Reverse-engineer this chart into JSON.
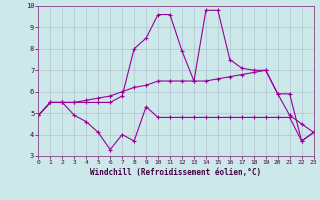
{
  "xlabel": "Windchill (Refroidissement éolien,°C)",
  "xlim": [
    0,
    23
  ],
  "ylim": [
    3,
    10
  ],
  "xticks": [
    0,
    1,
    2,
    3,
    4,
    5,
    6,
    7,
    8,
    9,
    10,
    11,
    12,
    13,
    14,
    15,
    16,
    17,
    18,
    19,
    20,
    21,
    22,
    23
  ],
  "yticks": [
    3,
    4,
    5,
    6,
    7,
    8,
    9,
    10
  ],
  "bg_color": "#cce8e8",
  "line_color": "#990099",
  "grid_color": "#aabbcc",
  "line1_x": [
    0,
    1,
    2,
    3,
    4,
    5,
    6,
    7,
    8,
    9,
    10,
    11,
    12,
    13,
    14,
    15,
    16,
    17,
    18,
    19,
    20,
    21,
    22,
    23
  ],
  "line1_y": [
    4.9,
    5.5,
    5.5,
    4.9,
    4.6,
    4.1,
    3.3,
    4.0,
    3.7,
    5.3,
    4.8,
    4.8,
    4.8,
    4.8,
    4.8,
    4.8,
    4.8,
    4.8,
    4.8,
    4.8,
    4.8,
    4.8,
    3.7,
    4.1
  ],
  "line2_x": [
    0,
    1,
    2,
    3,
    4,
    5,
    6,
    7,
    8,
    9,
    10,
    11,
    12,
    13,
    14,
    15,
    16,
    17,
    18,
    19,
    20,
    21,
    22,
    23
  ],
  "line2_y": [
    4.9,
    5.5,
    5.5,
    5.5,
    5.6,
    5.7,
    5.8,
    6.0,
    6.2,
    6.3,
    6.5,
    6.5,
    6.5,
    6.5,
    6.5,
    6.6,
    6.7,
    6.8,
    6.9,
    7.0,
    5.9,
    4.9,
    4.5,
    4.1
  ],
  "line3_x": [
    0,
    1,
    2,
    3,
    4,
    5,
    6,
    7,
    8,
    9,
    10,
    11,
    12,
    13,
    14,
    15,
    16,
    17,
    18,
    19,
    20,
    21,
    22,
    23
  ],
  "line3_y": [
    4.9,
    5.5,
    5.5,
    5.5,
    5.5,
    5.5,
    5.5,
    5.8,
    8.0,
    8.5,
    9.6,
    9.6,
    7.9,
    6.5,
    9.8,
    9.8,
    7.5,
    7.1,
    7.0,
    7.0,
    5.9,
    5.9,
    3.7,
    4.1
  ]
}
